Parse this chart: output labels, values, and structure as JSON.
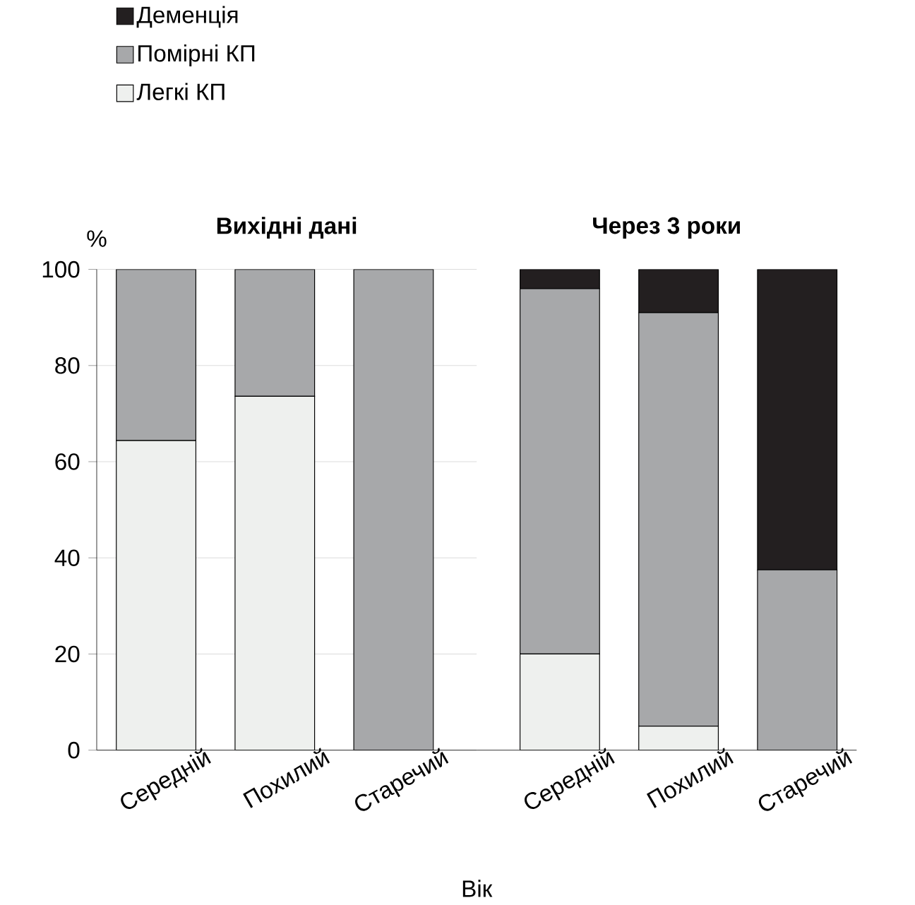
{
  "chart_data": [
    {
      "type": "bar",
      "title": "Вихідні дані",
      "ylabel": "%",
      "stacked": true,
      "categories": [
        "Середній",
        "Похилий",
        "Старечий"
      ],
      "ylim": [
        0,
        100
      ],
      "yticks": [
        0,
        20,
        40,
        60,
        80,
        100
      ],
      "grid": "y",
      "legend": "top left",
      "series": [
        {
          "name": "Легкі КП",
          "color": "#eef0ee",
          "values": [
            64.4,
            73.6,
            0
          ]
        },
        {
          "name": "Помірні КП",
          "color": "#a7a8aa",
          "values": [
            35.6,
            26.4,
            100
          ]
        },
        {
          "name": "Деменція",
          "color": "#231f20",
          "values": [
            0,
            0,
            0
          ]
        }
      ]
    },
    {
      "type": "bar",
      "title": "Через 3 роки",
      "xlabel": "Вік",
      "stacked": true,
      "categories": [
        "Середній",
        "Похилий",
        "Старечий"
      ],
      "ylim": [
        0,
        100
      ],
      "yticks": [
        0,
        20,
        40,
        60,
        80,
        100
      ],
      "grid": "y",
      "tick_labels": "x",
      "series": [
        {
          "color": "#eef0ee",
          "values": [
            20,
            5,
            0
          ]
        },
        {
          "color": "#a7a8aa",
          "values": [
            76,
            86,
            37.5
          ]
        },
        {
          "color": "#231f20",
          "values": [
            4,
            9,
            62.5
          ]
        }
      ]
    }
  ]
}
